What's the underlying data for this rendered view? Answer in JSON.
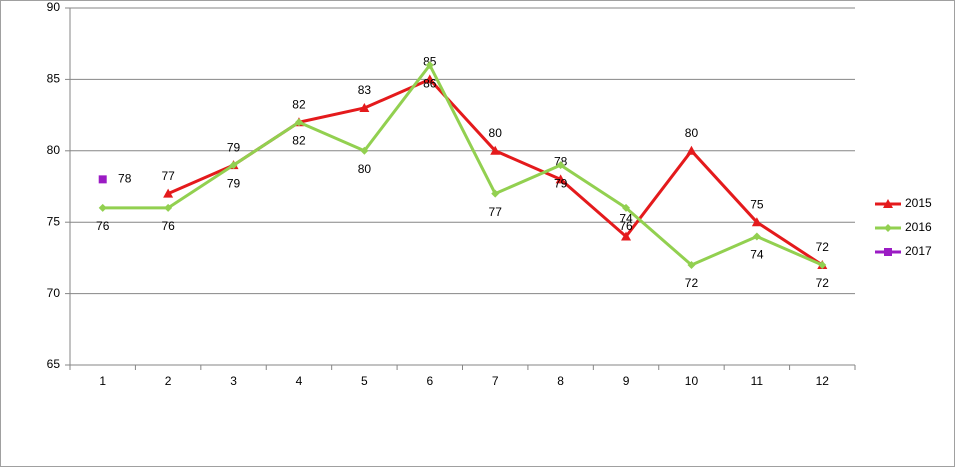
{
  "chart_data": {
    "type": "line",
    "categories": [
      "1",
      "2",
      "3",
      "4",
      "5",
      "6",
      "7",
      "8",
      "9",
      "10",
      "11",
      "12"
    ],
    "series": [
      {
        "name": "2015",
        "color": "#e41a1c",
        "marker": "triangle",
        "values": [
          null,
          77,
          79,
          82,
          83,
          85,
          80,
          78,
          74,
          80,
          75,
          72
        ]
      },
      {
        "name": "2016",
        "color": "#92d050",
        "marker": "diamond",
        "values": [
          76,
          76,
          79,
          82,
          80,
          86,
          77,
          79,
          76,
          72,
          74,
          72
        ]
      },
      {
        "name": "2017",
        "color": "#9b1bc4",
        "marker": "square",
        "values": [
          78,
          null,
          null,
          null,
          null,
          null,
          null,
          null,
          null,
          null,
          null,
          null
        ]
      }
    ],
    "ylim": [
      65,
      90
    ],
    "yticks": [
      65,
      70,
      75,
      80,
      85,
      90
    ],
    "grid": true,
    "legend": "right"
  }
}
